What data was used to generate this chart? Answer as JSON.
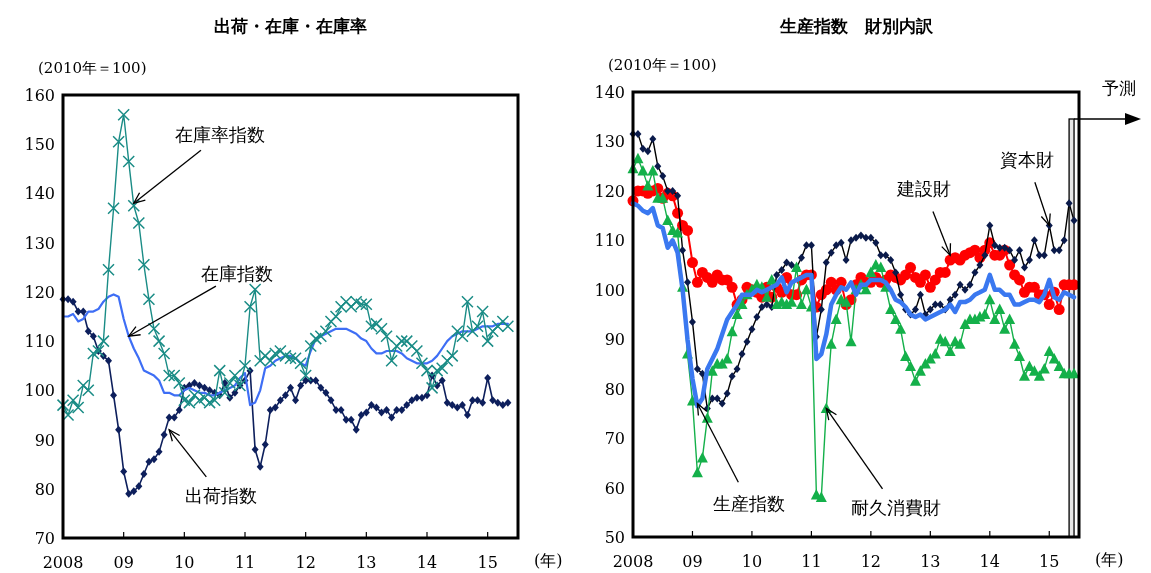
{
  "chart_data": [
    {
      "type": "line",
      "title": "出荷・在庫・在庫率",
      "ylabel": "(2010年＝100)",
      "xlabel": "(年)",
      "grid": false,
      "xlim": [
        "2008-01",
        "2015-07"
      ],
      "ylim": [
        70,
        160
      ],
      "yticks": [
        70,
        80,
        90,
        100,
        110,
        120,
        130,
        140,
        150,
        160
      ],
      "xticks": [
        {
          "value": "2008-01",
          "label": "2008"
        },
        {
          "value": "2009-01",
          "label": "09"
        },
        {
          "value": "2010-01",
          "label": "10"
        },
        {
          "value": "2011-01",
          "label": "11"
        },
        {
          "value": "2012-01",
          "label": "12"
        },
        {
          "value": "2013-01",
          "label": "13"
        },
        {
          "value": "2014-01",
          "label": "14"
        },
        {
          "value": "2015-01",
          "label": "15"
        }
      ],
      "x": [
        "2008-01",
        "2008-02",
        "2008-03",
        "2008-04",
        "2008-05",
        "2008-06",
        "2008-07",
        "2008-08",
        "2008-09",
        "2008-10",
        "2008-11",
        "2008-12",
        "2009-01",
        "2009-02",
        "2009-03",
        "2009-04",
        "2009-05",
        "2009-06",
        "2009-07",
        "2009-08",
        "2009-09",
        "2009-10",
        "2009-11",
        "2009-12",
        "2010-01",
        "2010-02",
        "2010-03",
        "2010-04",
        "2010-05",
        "2010-06",
        "2010-07",
        "2010-08",
        "2010-09",
        "2010-10",
        "2010-11",
        "2010-12",
        "2011-01",
        "2011-02",
        "2011-03",
        "2011-04",
        "2011-05",
        "2011-06",
        "2011-07",
        "2011-08",
        "2011-09",
        "2011-10",
        "2011-11",
        "2011-12",
        "2012-01",
        "2012-02",
        "2012-03",
        "2012-04",
        "2012-05",
        "2012-06",
        "2012-07",
        "2012-08",
        "2012-09",
        "2012-10",
        "2012-11",
        "2012-12",
        "2013-01",
        "2013-02",
        "2013-03",
        "2013-04",
        "2013-05",
        "2013-06",
        "2013-07",
        "2013-08",
        "2013-09",
        "2013-10",
        "2013-11",
        "2013-12",
        "2014-01",
        "2014-02",
        "2014-03",
        "2014-04",
        "2014-05",
        "2014-06",
        "2014-07",
        "2014-08",
        "2014-09",
        "2014-10",
        "2014-11",
        "2014-12",
        "2015-01",
        "2015-02",
        "2015-03",
        "2015-04",
        "2015-05"
      ],
      "series": [
        {
          "color": "#0d1f5c",
          "marker": "diamond",
          "values": [
            118.5,
            118.5,
            118,
            116,
            116,
            112,
            111,
            108,
            107,
            106,
            99,
            92,
            83.5,
            79,
            79.5,
            80.5,
            83,
            85.5,
            86,
            87.5,
            91,
            94.5,
            94.5,
            96,
            100.5,
            101,
            101.5,
            101,
            100.5,
            100,
            99.5,
            99,
            101.5,
            98.5,
            99.5,
            101,
            102,
            104,
            88,
            84.5,
            89,
            96,
            96.5,
            98,
            99,
            100.5,
            98,
            101,
            102,
            102,
            102,
            100.5,
            99.5,
            98,
            96,
            96,
            94,
            94,
            92,
            95,
            95.5,
            97,
            96.5,
            95.5,
            96,
            94.5,
            96,
            96,
            97,
            98,
            98.5,
            98.5,
            99,
            103,
            101,
            102,
            97.5,
            97,
            96.5,
            97,
            95,
            98,
            98,
            97.5,
            102.5,
            98,
            97.5,
            97,
            97.5
          ]
        },
        {
          "color": "#3e6ef5",
          "marker": "none",
          "values": [
            115,
            115,
            115.5,
            114,
            114.5,
            116,
            116,
            116.5,
            118,
            119,
            119.5,
            119,
            114.5,
            111,
            108.5,
            106.5,
            104,
            103.5,
            103,
            102,
            99.5,
            99.5,
            99,
            99,
            100,
            100.5,
            100,
            99.5,
            99.5,
            99,
            99,
            99.5,
            100,
            100.5,
            101,
            102.5,
            103.5,
            97,
            97.5,
            100,
            104.5,
            105,
            106,
            106.5,
            107,
            107,
            106.5,
            105.5,
            105,
            108,
            110.5,
            111,
            111.5,
            112,
            112.5,
            112.5,
            112.5,
            112,
            111.5,
            110.5,
            110,
            108.5,
            107.5,
            107.5,
            108,
            108,
            108,
            107.5,
            106.5,
            106,
            105.5,
            105.5,
            105.5,
            106,
            107,
            108.5,
            110,
            111,
            111.5,
            112,
            112,
            112,
            112.5,
            113,
            113,
            113,
            113.5,
            113.5,
            113.5
          ]
        },
        {
          "color": "#1a8c86",
          "marker": "cross",
          "values": [
            97,
            95,
            98,
            96.5,
            101,
            100,
            107.5,
            108,
            110,
            124.5,
            137,
            150.5,
            156,
            146.5,
            137.5,
            134,
            125.5,
            118.5,
            112.5,
            110,
            107.5,
            103,
            103,
            101.5,
            98,
            97.5,
            99,
            98,
            98.5,
            97.5,
            98,
            104,
            99.5,
            101.5,
            103,
            101,
            105,
            117,
            120.5,
            106,
            107,
            106,
            107.5,
            108,
            107,
            106.5,
            106.5,
            105.5,
            103,
            109,
            110.5,
            111,
            112,
            114,
            115,
            117,
            118,
            117,
            118,
            117.5,
            117.5,
            113,
            113.5,
            112.5,
            111,
            106,
            109,
            110,
            110,
            109,
            108,
            105.5,
            104,
            100.5,
            104,
            104.5,
            106,
            107,
            112,
            111,
            118,
            112,
            113,
            116,
            110,
            112,
            113,
            114,
            113
          ]
        }
      ],
      "annotations": [
        {
          "text": "在庫率指数",
          "x": "2009-03",
          "y": 138
        },
        {
          "text": "在庫指数",
          "x": "2009-02",
          "y": 111
        },
        {
          "text": "出荷指数",
          "x": "2009-10",
          "y": 92
        }
      ]
    },
    {
      "type": "line",
      "title": "生産指数　財別内訳",
      "ylabel": "(2010年＝100)",
      "xlabel": "(年)",
      "grid": false,
      "xlim": [
        "2008-01",
        "2015-07"
      ],
      "ylim": [
        50,
        140
      ],
      "yticks": [
        50,
        60,
        70,
        80,
        90,
        100,
        110,
        120,
        130,
        140
      ],
      "xticks": [
        {
          "value": "2008-01",
          "label": "2008"
        },
        {
          "value": "2009-01",
          "label": "09"
        },
        {
          "value": "2010-01",
          "label": "10"
        },
        {
          "value": "2011-01",
          "label": "11"
        },
        {
          "value": "2012-01",
          "label": "12"
        },
        {
          "value": "2013-01",
          "label": "13"
        },
        {
          "value": "2014-01",
          "label": "14"
        },
        {
          "value": "2015-01",
          "label": "15"
        }
      ],
      "x": [
        "2008-01",
        "2008-02",
        "2008-03",
        "2008-04",
        "2008-05",
        "2008-06",
        "2008-07",
        "2008-08",
        "2008-09",
        "2008-10",
        "2008-11",
        "2008-12",
        "2009-01",
        "2009-02",
        "2009-03",
        "2009-04",
        "2009-05",
        "2009-06",
        "2009-07",
        "2009-08",
        "2009-09",
        "2009-10",
        "2009-11",
        "2009-12",
        "2010-01",
        "2010-02",
        "2010-03",
        "2010-04",
        "2010-05",
        "2010-06",
        "2010-07",
        "2010-08",
        "2010-09",
        "2010-10",
        "2010-11",
        "2010-12",
        "2011-01",
        "2011-02",
        "2011-03",
        "2011-04",
        "2011-05",
        "2011-06",
        "2011-07",
        "2011-08",
        "2011-09",
        "2011-10",
        "2011-11",
        "2011-12",
        "2012-01",
        "2012-02",
        "2012-03",
        "2012-04",
        "2012-05",
        "2012-06",
        "2012-07",
        "2012-08",
        "2012-09",
        "2012-10",
        "2012-11",
        "2012-12",
        "2013-01",
        "2013-02",
        "2013-03",
        "2013-04",
        "2013-05",
        "2013-06",
        "2013-07",
        "2013-08",
        "2013-09",
        "2013-10",
        "2013-11",
        "2013-12",
        "2014-01",
        "2014-02",
        "2014-03",
        "2014-04",
        "2014-05",
        "2014-06",
        "2014-07",
        "2014-08",
        "2014-09",
        "2014-10",
        "2014-11",
        "2014-12",
        "2015-01",
        "2015-02",
        "2015-03",
        "2015-04",
        "2015-05",
        "2015-06"
      ],
      "series": [
        {
          "color": "#ff0000",
          "marker": "circle",
          "values": [
            118,
            120,
            120,
            119.5,
            120,
            120.5,
            118.5,
            119.5,
            119,
            115.5,
            113,
            112,
            105.5,
            101.5,
            103.5,
            102.5,
            101.5,
            103,
            102,
            102,
            100.5,
            97,
            98,
            100.5,
            100,
            99.5,
            98.5,
            100.5,
            98.5,
            100.5,
            99.5,
            102.5,
            99,
            99,
            102,
            103,
            103,
            96.5,
            99,
            100,
            101.5,
            100,
            101.5,
            97,
            98,
            101,
            102.5,
            101.5,
            101.5,
            102.5,
            101.5,
            102,
            103,
            102.5,
            102,
            103,
            104.5,
            102.5,
            101.5,
            103,
            100.5,
            102,
            103.5,
            103.5,
            106,
            106.5,
            106,
            107,
            107.5,
            108,
            106.5,
            108,
            109.5,
            107,
            107,
            108,
            105,
            103,
            102,
            99.5,
            100.5,
            100.5,
            99,
            99,
            97,
            99.5,
            96,
            101,
            101,
            101
          ]
        },
        {
          "color": "#0a1a4a",
          "marker": "diamond",
          "values": [
            131.5,
            131.5,
            128.5,
            128,
            130.5,
            125,
            123,
            120,
            120,
            119,
            108,
            101.5,
            93.5,
            84,
            83,
            76,
            78,
            78,
            77,
            79,
            82.5,
            84,
            87,
            89.5,
            92,
            94.5,
            96.5,
            97,
            96.5,
            103,
            104,
            105.5,
            105,
            104.5,
            106.5,
            109,
            109,
            90.5,
            96,
            105.5,
            107.5,
            109,
            109.5,
            106,
            110,
            110.5,
            111,
            110.5,
            110.5,
            109.5,
            107,
            107,
            106,
            103.5,
            99,
            96,
            95,
            96,
            99,
            95,
            96,
            97,
            97,
            96,
            98,
            99,
            101,
            100,
            101,
            103.5,
            105,
            107,
            113,
            109,
            108.5,
            108.5,
            108,
            106,
            108,
            104.5,
            106,
            110,
            107,
            107,
            113,
            108,
            108,
            110,
            117.5,
            114
          ]
        },
        {
          "color": "#14b04a",
          "marker": "triangle",
          "values": [
            124.5,
            126.5,
            124,
            121,
            124,
            118.5,
            118.5,
            114,
            112,
            111.5,
            100.5,
            87,
            77.5,
            63,
            66,
            74,
            83.5,
            85,
            85,
            86,
            91.5,
            95,
            97,
            99,
            100,
            101,
            100.5,
            98.5,
            102,
            97,
            97.5,
            97,
            97.5,
            104.5,
            97,
            100,
            96.5,
            58.5,
            58,
            76,
            89,
            94,
            98,
            97.5,
            89.5,
            100,
            101,
            100,
            103.5,
            105,
            104.5,
            100.5,
            96,
            94,
            92,
            86.5,
            84.5,
            81.5,
            83.5,
            85,
            86,
            87,
            90,
            89.5,
            87.5,
            89.5,
            89,
            93,
            94,
            94,
            94.5,
            95,
            98,
            94,
            96,
            92,
            94,
            89,
            86.5,
            82.5,
            84.5,
            83.5,
            82.5,
            84,
            87.5,
            86,
            84.5,
            83,
            83,
            83
          ]
        },
        {
          "color": "#3a78f0",
          "marker": "none",
          "values": [
            117.5,
            117,
            116,
            115.5,
            116.5,
            113,
            112.5,
            108.5,
            110,
            107.5,
            100,
            90,
            82,
            76.5,
            78,
            84,
            86,
            88,
            91,
            94,
            95.5,
            97,
            99,
            99,
            99,
            100,
            99.5,
            100,
            100.5,
            101,
            102.5,
            99.5,
            101.5,
            102,
            102.5,
            103,
            103,
            86,
            87,
            91,
            97,
            99,
            100.5,
            100,
            101.5,
            99,
            101,
            101,
            102,
            102,
            102,
            101.5,
            100,
            98,
            97.5,
            96.5,
            95,
            94.5,
            95,
            94,
            94.5,
            95,
            95.5,
            96,
            97,
            95.5,
            97.5,
            97.5,
            98,
            99,
            99.5,
            100,
            103,
            100,
            100,
            99,
            99,
            97,
            97,
            97.5,
            98,
            98,
            97.5,
            99,
            102,
            98.5,
            98,
            99.5,
            99,
            98.5
          ]
        }
      ],
      "annotations": [
        {
          "text": "生産指数",
          "x": "2009-02",
          "y": 77
        },
        {
          "text": "耐久消費財",
          "x": "2011-04",
          "y": 76
        },
        {
          "text": "建設財",
          "x": "2013-05",
          "y": 107
        },
        {
          "text": "資本財",
          "x": "2015-01",
          "y": 113
        }
      ],
      "bands": [
        {
          "axis": "x",
          "from": "2015-05",
          "to": "2015-06",
          "label": "予測"
        }
      ]
    }
  ]
}
